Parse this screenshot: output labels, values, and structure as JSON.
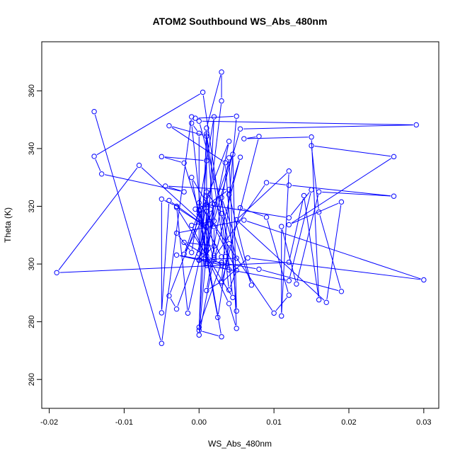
{
  "chart_data": {
    "type": "line",
    "title": "ATOM2 Southbound WS_Abs_480nm",
    "xlabel": "WS_Abs_480nm",
    "ylabel": "Theta (K)",
    "xlim": [
      -0.021,
      0.032
    ],
    "ylim": [
      250,
      377
    ],
    "xticks": [
      -0.02,
      -0.01,
      0.0,
      0.01,
      0.02,
      0.03
    ],
    "xtick_labels": [
      "-0.02",
      "-0.01",
      "0.00",
      "0.01",
      "0.02",
      "0.03"
    ],
    "yticks": [
      260,
      280,
      300,
      320,
      340,
      360
    ],
    "ytick_labels": [
      "260",
      "280",
      "300",
      "320",
      "340",
      "360"
    ],
    "grid": false,
    "series": [
      {
        "color": "#0000ff",
        "markers": "open-circle",
        "points": [
          [
            -0.014,
            352.8
          ],
          [
            -0.005,
            272.5
          ],
          [
            -0.001,
            351
          ],
          [
            -0.0005,
            350.5
          ],
          [
            0.005,
            351.2
          ],
          [
            0.003,
            294
          ],
          [
            0.001,
            290.8
          ],
          [
            0.004,
            336.8
          ],
          [
            0.005,
            277.7
          ],
          [
            0.004,
            286.3
          ],
          [
            -0.001,
            313.4
          ],
          [
            0.002,
            314.9
          ],
          [
            0.001,
            345.1
          ],
          [
            0.0035,
            302.6
          ],
          [
            0.004,
            291
          ],
          [
            0.005,
            297.8
          ],
          [
            0.002,
            313
          ],
          [
            0.002,
            303
          ],
          [
            0.001,
            325
          ],
          [
            0.003,
            317.5
          ],
          [
            0.004,
            307
          ],
          [
            0.0025,
            281.5
          ],
          [
            -0.001,
            330
          ],
          [
            0.0015,
            319
          ],
          [
            -0.0015,
            283
          ],
          [
            -0.003,
            320
          ],
          [
            -0.005,
            322.5
          ],
          [
            -0.005,
            283.1
          ],
          [
            -0.004,
            322
          ],
          [
            0.001,
            312.8
          ],
          [
            -0.003,
            319.6
          ],
          [
            0.0045,
            288.4
          ],
          [
            0.003,
            323
          ],
          [
            0.007,
            292.7
          ],
          [
            0.004,
            324
          ],
          [
            0.0055,
            337
          ],
          [
            0.002,
            301.5
          ],
          [
            -0.002,
            335
          ],
          [
            -0.005,
            337.2
          ],
          [
            0.001,
            335.8
          ],
          [
            0.0,
            303.5
          ],
          [
            0.0,
            345.3
          ],
          [
            -0.001,
            348.8
          ],
          [
            0.001,
            299.5
          ],
          [
            0.012,
            294.2
          ],
          [
            0.015,
            325.7
          ],
          [
            0.012,
            316
          ],
          [
            0.001,
            320.6
          ],
          [
            -0.0005,
            319
          ],
          [
            0.0,
            318.8
          ],
          [
            0.003,
            274.8
          ],
          [
            0.0,
            277
          ],
          [
            0.001,
            347.1
          ],
          [
            0.003,
            366.5
          ],
          [
            0.003,
            356.5
          ],
          [
            0.001,
            313
          ],
          [
            -0.008,
            334.2
          ],
          [
            -0.019,
            297
          ],
          [
            0.012,
            300.6
          ],
          [
            0.014,
            323.7
          ],
          [
            0.016,
            287.6
          ],
          [
            0.015,
            344
          ],
          [
            0.006,
            343.4
          ],
          [
            0.008,
            344.2
          ],
          [
            0.003,
            293.5
          ],
          [
            0.0065,
            302.1
          ],
          [
            0.03,
            294.5
          ],
          [
            0.006,
            315.2
          ],
          [
            -0.003,
            310.7
          ],
          [
            -0.001,
            304
          ],
          [
            0.002,
            351
          ],
          [
            0.001,
            300.1
          ],
          [
            0.001,
            344.3
          ],
          [
            -0.004,
            347.9
          ],
          [
            0.0035,
            335.1
          ],
          [
            0.005,
            283.7
          ],
          [
            0.0045,
            338
          ],
          [
            -0.003,
            284.4
          ],
          [
            -0.004,
            289
          ],
          [
            0.004,
            342.5
          ],
          [
            0.001,
            304.5
          ],
          [
            0.0,
            275.4
          ],
          [
            0.002,
            302.2
          ],
          [
            0.009,
            328.2
          ],
          [
            0.012,
            327.3
          ],
          [
            0.026,
            323.5
          ],
          [
            0.016,
            325
          ],
          [
            0.013,
            293.1
          ],
          [
            0.011,
            313
          ],
          [
            0.011,
            282
          ],
          [
            0.012,
            332.2
          ],
          [
            0.005,
            315.3
          ],
          [
            0.017,
            286.7
          ],
          [
            0.019,
            321.5
          ],
          [
            0.012,
            313.6
          ],
          [
            0.026,
            337.2
          ],
          [
            0.015,
            341
          ],
          [
            0.016,
            318
          ],
          [
            0.019,
            290.5
          ],
          [
            0.008,
            298.2
          ],
          [
            -0.003,
            303.1
          ],
          [
            0.003,
            299.7
          ],
          [
            0.0,
            301.5
          ],
          [
            0.005,
            302
          ],
          [
            0.0,
            349.5
          ],
          [
            0.029,
            348.2
          ],
          [
            0.0055,
            346.8
          ],
          [
            0.001,
            306.1
          ],
          [
            0.002,
            320.7
          ],
          [
            0.001,
            300.4
          ],
          [
            0.001,
            323.5
          ],
          [
            0.0,
            301.3
          ],
          [
            0.002,
            306.2
          ],
          [
            -0.002,
            307.5
          ],
          [
            0.001,
            302.8
          ],
          [
            0.0035,
            299.1
          ],
          [
            0.004,
            298
          ],
          [
            0.0005,
            359.5
          ],
          [
            -0.014,
            337.3
          ],
          [
            -0.013,
            331.2
          ],
          [
            -0.002,
            325
          ],
          [
            -0.0045,
            327
          ],
          [
            0.004,
            325.8
          ],
          [
            0.0,
            318.5
          ],
          [
            -0.002,
            303.4
          ],
          [
            0.001,
            318.2
          ],
          [
            0.0,
            278.1
          ],
          [
            0.003,
            300.5
          ],
          [
            0.003,
            302.5
          ],
          [
            0.0,
            317.4
          ],
          [
            0.0,
            321.2
          ],
          [
            0.01,
            283
          ],
          [
            0.012,
            289.2
          ],
          [
            0.009,
            316.2
          ],
          [
            0.0055,
            319.5
          ]
        ]
      }
    ]
  }
}
